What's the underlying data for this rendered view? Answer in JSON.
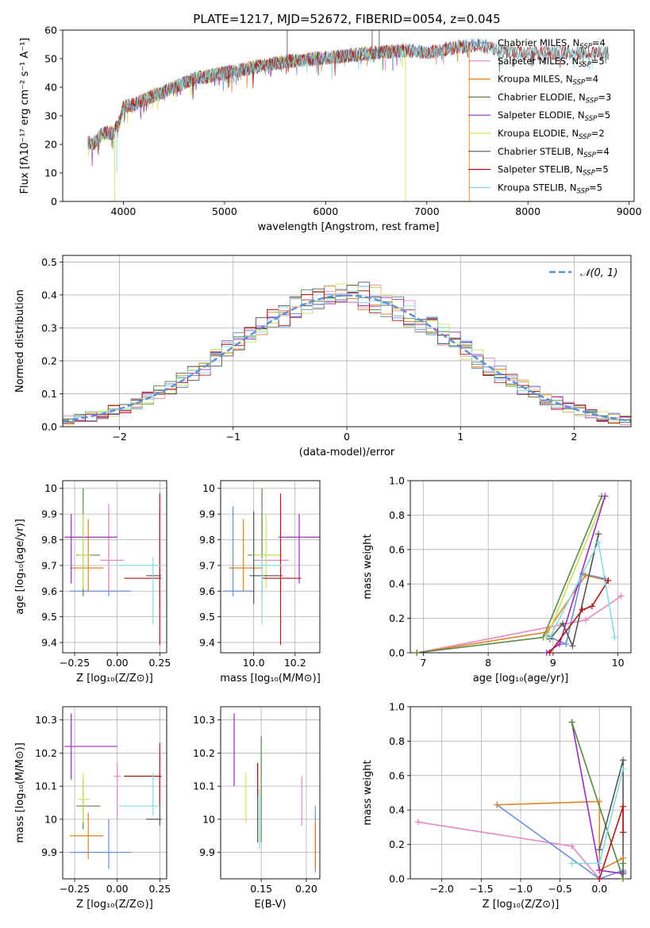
{
  "title": "PLATE=1217, MJD=52672, FIBERID=0054, z=0.045",
  "colors": {
    "Chabrier MILES": "#6a8fd8",
    "Salpeter MILES": "#e889c2",
    "Kroupa MILES": "#e08428",
    "Chabrier ELODIE": "#5a8a4a",
    "Salpeter ELODIE": "#9c2bc0",
    "Kroupa ELODIE": "#cfe35a",
    "Chabrier STELIB": "#555555",
    "Salpeter STELIB": "#b01818",
    "Kroupa STELIB": "#86dbe0",
    "gaussian": "#5b8ed6"
  },
  "chart_data": [
    {
      "id": "spectrum",
      "type": "line",
      "xlabel": "wavelength [Angstrom, rest frame]",
      "ylabel": "Flux [fλ10⁻¹⁷ erg cm⁻² s⁻¹ A⁻¹]",
      "xlim": [
        3400,
        9050
      ],
      "ylim": [
        0,
        60
      ],
      "xticks": [
        4000,
        5000,
        6000,
        7000,
        8000,
        9000
      ],
      "yticks": [
        0,
        10,
        20,
        30,
        40,
        50,
        60
      ],
      "legend_loc": "right",
      "legend": [
        {
          "label": "Chabrier MILES, N",
          "sub": "SSP",
          "suffix": "=4",
          "model": "Chabrier MILES"
        },
        {
          "label": "Salpeter MILES, N",
          "sub": "SSP",
          "suffix": "=5",
          "model": "Salpeter MILES"
        },
        {
          "label": "Kroupa MILES, N",
          "sub": "SSP",
          "suffix": "=4",
          "model": "Kroupa MILES"
        },
        {
          "label": "Chabrier ELODIE, N",
          "sub": "SSP",
          "suffix": "=3",
          "model": "Chabrier ELODIE"
        },
        {
          "label": "Salpeter ELODIE, N",
          "sub": "SSP",
          "suffix": "=5",
          "model": "Salpeter ELODIE"
        },
        {
          "label": "Kroupa ELODIE, N",
          "sub": "SSP",
          "suffix": "=2",
          "model": "Kroupa ELODIE"
        },
        {
          "label": "Chabrier STELIB, N",
          "sub": "SSP",
          "suffix": "=4",
          "model": "Chabrier STELIB"
        },
        {
          "label": "Salpeter STELIB, N",
          "sub": "SSP",
          "suffix": "=5",
          "model": "Salpeter STELIB"
        },
        {
          "label": "Kroupa STELIB, N",
          "sub": "SSP",
          "suffix": "=5",
          "model": "Kroupa STELIB"
        }
      ],
      "continuum": [
        [
          3650,
          21
        ],
        [
          3700,
          20
        ],
        [
          3800,
          24
        ],
        [
          3900,
          24
        ],
        [
          3950,
          27
        ],
        [
          4000,
          33
        ],
        [
          4100,
          34
        ],
        [
          4300,
          37
        ],
        [
          4500,
          40
        ],
        [
          4700,
          43
        ],
        [
          5000,
          45
        ],
        [
          5300,
          47
        ],
        [
          5600,
          49
        ],
        [
          5900,
          50
        ],
        [
          6200,
          51
        ],
        [
          6500,
          52
        ],
        [
          6800,
          53
        ],
        [
          7000,
          52
        ],
        [
          7300,
          54
        ],
        [
          7500,
          55
        ],
        [
          7700,
          53
        ],
        [
          8000,
          52
        ],
        [
          8300,
          52
        ],
        [
          8600,
          52
        ],
        [
          8800,
          52
        ]
      ],
      "model_ranges": {
        "Chabrier MILES": [
          3650,
          7400
        ],
        "Salpeter MILES": [
          3650,
          7400
        ],
        "Kroupa MILES": [
          3650,
          7400
        ],
        "Chabrier ELODIE": [
          3650,
          6800
        ],
        "Salpeter ELODIE": [
          3650,
          6800
        ],
        "Kroupa ELODIE": [
          3650,
          6800
        ],
        "Chabrier STELIB": [
          3650,
          8800
        ],
        "Salpeter STELIB": [
          3650,
          8800
        ],
        "Kroupa STELIB": [
          3650,
          8800
        ]
      }
    },
    {
      "id": "residuals",
      "type": "step",
      "xlabel": "(data-model)/error",
      "ylabel": "Normed distribution",
      "xlim": [
        -2.5,
        2.5
      ],
      "ylim": [
        0,
        0.52
      ],
      "xticks": [
        -2,
        -1,
        0,
        1,
        2
      ],
      "yticks": [
        0,
        0.1,
        0.2,
        0.3,
        0.4,
        0.5
      ],
      "grid": true,
      "legend_loc": "top-right",
      "gaussian_label": "𝒩(0, 1)",
      "bin_width": 0.1
    },
    {
      "id": "age_Z",
      "type": "errorbar",
      "xlabel": "Z [log₁₀(Z/Z⊙)]",
      "ylabel": "age  [log₁₀(age/yr)]",
      "xlim": [
        -0.32,
        0.29
      ],
      "ylim": [
        9.36,
        10.03
      ],
      "xticks": [
        -0.25,
        0,
        0.25
      ],
      "xticklabels": [
        "−0.25",
        "0.00",
        "0.25"
      ],
      "yticks": [
        9.4,
        9.5,
        9.6,
        9.7,
        9.8,
        9.9,
        10.0
      ],
      "grid": true,
      "points": [
        {
          "model": "Chabrier MILES",
          "x": -0.05,
          "xerr": [
            0.23,
            0.13
          ],
          "y": 9.6,
          "yerr": [
            0.02,
            0.33
          ]
        },
        {
          "model": "Salpeter MILES",
          "x": -0.05,
          "xerr": [
            0.05,
            0.09
          ],
          "y": 9.72,
          "yerr": [
            0.12,
            0.22
          ]
        },
        {
          "model": "Kroupa MILES",
          "x": -0.17,
          "xerr": [
            0.11,
            0.09
          ],
          "y": 9.69,
          "yerr": [
            0.09,
            0.19
          ]
        },
        {
          "model": "Chabrier ELODIE",
          "x": -0.2,
          "xerr": [
            0.04,
            0.1
          ],
          "y": 9.74,
          "yerr": [
            0.16,
            0.26
          ]
        },
        {
          "model": "Salpeter ELODIE",
          "x": -0.27,
          "xerr": [
            0.04,
            0.27
          ],
          "y": 9.81,
          "yerr": [
            0.18,
            0.09
          ]
        },
        {
          "model": "Kroupa ELODIE",
          "x": -0.2,
          "xerr": [
            0.03,
            0.04
          ],
          "y": 9.74,
          "yerr": [
            0.13,
            0.16
          ]
        },
        {
          "model": "Chabrier STELIB",
          "x": 0.25,
          "xerr": [
            0.08,
            0.01
          ],
          "y": 9.66,
          "yerr": [
            0.11,
            0.25
          ]
        },
        {
          "model": "Salpeter STELIB",
          "x": 0.25,
          "xerr": [
            0.21,
            0.01
          ],
          "y": 9.65,
          "yerr": [
            0.26,
            0.33
          ]
        },
        {
          "model": "Kroupa STELIB",
          "x": 0.21,
          "xerr": [
            0.2,
            0.05
          ],
          "y": 9.7,
          "yerr": [
            0.23,
            0.03
          ]
        }
      ]
    },
    {
      "id": "age_mass",
      "type": "errorbar",
      "xlabel": "mass [log₁₀(M/M⊙)]",
      "ylabel": "",
      "xlim": [
        9.84,
        10.32
      ],
      "ylim": [
        9.36,
        10.03
      ],
      "xticks": [
        10.0,
        10.2
      ],
      "xticklabels": [
        "10.0",
        "10.2"
      ],
      "yticks": [
        9.4,
        9.5,
        9.6,
        9.7,
        9.8,
        9.9,
        10.0
      ],
      "grid": true,
      "points": [
        {
          "model": "Chabrier MILES",
          "x": 9.9,
          "xerr": [
            0.05,
            0.1
          ],
          "y": 9.6,
          "yerr": [
            0.02,
            0.33
          ]
        },
        {
          "model": "Salpeter MILES",
          "x": 10.13,
          "xerr": [
            0.13,
            0.04
          ],
          "y": 9.72,
          "yerr": [
            0.12,
            0.22
          ]
        },
        {
          "model": "Kroupa MILES",
          "x": 9.95,
          "xerr": [
            0.07,
            0.09
          ],
          "y": 9.69,
          "yerr": [
            0.09,
            0.19
          ]
        },
        {
          "model": "Chabrier ELODIE",
          "x": 10.04,
          "xerr": [
            0.07,
            0.08
          ],
          "y": 9.74,
          "yerr": [
            0.16,
            0.26
          ]
        },
        {
          "model": "Salpeter ELODIE",
          "x": 10.22,
          "xerr": [
            0.1,
            0.1
          ],
          "y": 9.81,
          "yerr": [
            0.18,
            0.09
          ]
        },
        {
          "model": "Kroupa ELODIE",
          "x": 10.06,
          "xerr": [
            0.07,
            0.08
          ],
          "y": 9.74,
          "yerr": [
            0.13,
            0.16
          ]
        },
        {
          "model": "Chabrier STELIB",
          "x": 10.0,
          "xerr": [
            0.02,
            0.14
          ],
          "y": 9.66,
          "yerr": [
            0.11,
            0.25
          ]
        },
        {
          "model": "Salpeter STELIB",
          "x": 10.13,
          "xerr": [
            0.09,
            0.1
          ],
          "y": 9.65,
          "yerr": [
            0.26,
            0.33
          ]
        },
        {
          "model": "Kroupa STELIB",
          "x": 10.04,
          "xerr": [
            0.03,
            0.1
          ],
          "y": 9.7,
          "yerr": [
            0.23,
            0.03
          ]
        }
      ]
    },
    {
      "id": "weight_age",
      "type": "line",
      "xlabel": "age  [log₁₀(age/yr)]",
      "ylabel": "mass weight",
      "xlim": [
        6.8,
        10.2
      ],
      "ylim": [
        0,
        1.0
      ],
      "xticks": [
        7,
        8,
        9,
        10
      ],
      "yticks": [
        0,
        0.2,
        0.4,
        0.6,
        0.8,
        1.0
      ],
      "grid": true,
      "series": [
        {
          "model": "Salpeter MILES",
          "x": [
            6.9,
            9.5,
            10.05
          ],
          "y": [
            0.0,
            0.19,
            0.33
          ]
        },
        {
          "model": "Kroupa MILES",
          "x": [
            6.9,
            8.9,
            9.5,
            9.85
          ],
          "y": [
            0.0,
            0.12,
            0.45,
            0.42
          ]
        },
        {
          "model": "Chabrier MILES",
          "x": [
            8.9,
            9.2,
            9.45,
            9.8
          ],
          "y": [
            0.1,
            0.05,
            0.46,
            0.43
          ]
        },
        {
          "model": "Chabrier ELODIE",
          "x": [
            6.9,
            8.85,
            9.75
          ],
          "y": [
            0.0,
            0.09,
            0.91
          ]
        },
        {
          "model": "Kroupa ELODIE",
          "x": [
            8.9,
            9.8
          ],
          "y": [
            0.09,
            0.91
          ]
        },
        {
          "model": "Salpeter ELODIE",
          "x": [
            8.9,
            9.1,
            9.8
          ],
          "y": [
            0.0,
            0.05,
            0.91
          ]
        },
        {
          "model": "Chabrier STELIB",
          "x": [
            8.95,
            9.15,
            9.3,
            9.7
          ],
          "y": [
            0.08,
            0.17,
            0.04,
            0.69
          ]
        },
        {
          "model": "Salpeter STELIB",
          "x": [
            8.95,
            9.45,
            9.6,
            9.85
          ],
          "y": [
            0.0,
            0.25,
            0.27,
            0.42
          ]
        },
        {
          "model": "Kroupa STELIB",
          "x": [
            8.95,
            9.7,
            9.95
          ],
          "y": [
            0.09,
            0.64,
            0.09
          ]
        }
      ]
    },
    {
      "id": "mass_Z",
      "type": "errorbar",
      "xlabel": "Z [log₁₀(Z/Z⊙)]",
      "ylabel": "mass [log₁₀(M/M⊙)]",
      "xlim": [
        -0.32,
        0.29
      ],
      "ylim": [
        9.82,
        10.34
      ],
      "xticks": [
        -0.25,
        0,
        0.25
      ],
      "xticklabels": [
        "−0.25",
        "0.00",
        "0.25"
      ],
      "yticks": [
        9.9,
        10.0,
        10.1,
        10.2,
        10.3
      ],
      "grid": true,
      "points": [
        {
          "model": "Chabrier MILES",
          "x": -0.05,
          "xerr": [
            0.23,
            0.13
          ],
          "y": 9.9,
          "yerr": [
            0.05,
            0.1
          ]
        },
        {
          "model": "Salpeter MILES",
          "x": 0.0,
          "xerr": [
            0.02,
            0.02
          ],
          "y": 10.13,
          "yerr": [
            0.13,
            0.04
          ]
        },
        {
          "model": "Kroupa MILES",
          "x": -0.17,
          "xerr": [
            0.11,
            0.09
          ],
          "y": 9.95,
          "yerr": [
            0.07,
            0.07
          ]
        },
        {
          "model": "Chabrier ELODIE",
          "x": -0.2,
          "xerr": [
            0.04,
            0.1
          ],
          "y": 10.04,
          "yerr": [
            0.07,
            0.08
          ]
        },
        {
          "model": "Salpeter ELODIE",
          "x": -0.27,
          "xerr": [
            0.04,
            0.27
          ],
          "y": 10.22,
          "yerr": [
            0.1,
            0.1
          ]
        },
        {
          "model": "Kroupa ELODIE",
          "x": -0.2,
          "xerr": [
            0.03,
            0.04
          ],
          "y": 10.06,
          "yerr": [
            0.07,
            0.08
          ]
        },
        {
          "model": "Chabrier STELIB",
          "x": 0.25,
          "xerr": [
            0.08,
            0.01
          ],
          "y": 10.0,
          "yerr": [
            0.02,
            0.14
          ]
        },
        {
          "model": "Salpeter STELIB",
          "x": 0.25,
          "xerr": [
            0.21,
            0.01
          ],
          "y": 10.13,
          "yerr": [
            0.09,
            0.1
          ]
        },
        {
          "model": "Kroupa STELIB",
          "x": 0.21,
          "xerr": [
            0.2,
            0.05
          ],
          "y": 10.04,
          "yerr": [
            0.03,
            0.1
          ]
        }
      ]
    },
    {
      "id": "mass_ebv",
      "type": "errorbar",
      "xlabel": "E(B-V)",
      "ylabel": "",
      "xlim": [
        0.105,
        0.215
      ],
      "ylim": [
        9.82,
        10.34
      ],
      "xticks": [
        0.15,
        0.2
      ],
      "xticklabels": [
        "0.15",
        "0.20"
      ],
      "yticks": [
        9.9,
        10.0,
        10.1,
        10.2,
        10.3
      ],
      "grid": true,
      "points": [
        {
          "model": "Salpeter ELODIE",
          "x": 0.12,
          "y": 10.22,
          "yerr": [
            0.12,
            0.1
          ]
        },
        {
          "model": "Kroupa ELODIE",
          "x": 0.133,
          "y": 10.06,
          "yerr": [
            0.07,
            0.08
          ]
        },
        {
          "model": "Chabrier STELIB",
          "x": 0.146,
          "y": 10.03,
          "yerr": [
            0.1,
            0.14
          ]
        },
        {
          "model": "Salpeter STELIB",
          "x": 0.146,
          "y": 10.13,
          "yerr": [
            0.06,
            0.04
          ]
        },
        {
          "model": "Kroupa STELIB",
          "x": 0.148,
          "y": 10.03,
          "yerr": [
            0.12,
            0.06
          ]
        },
        {
          "model": "Chabrier ELODIE",
          "x": 0.15,
          "y": 10.1,
          "yerr": [
            0.17,
            0.15
          ]
        },
        {
          "model": "Salpeter MILES",
          "x": 0.195,
          "y": 10.06,
          "yerr": [
            0.08,
            0.07
          ]
        },
        {
          "model": "Chabrier MILES",
          "x": 0.21,
          "y": 9.95,
          "yerr": [
            0.11,
            0.09
          ]
        },
        {
          "model": "Kroupa MILES",
          "x": 0.21,
          "y": 9.92,
          "yerr": [
            0.07,
            0.08
          ]
        }
      ]
    },
    {
      "id": "weight_Z",
      "type": "line",
      "xlabel": "Z [log₁₀(Z/Z⊙)]",
      "ylabel": "mass weight",
      "xlim": [
        -2.4,
        0.4
      ],
      "ylim": [
        0,
        1.0
      ],
      "xticks": [
        -2.0,
        -1.5,
        -1.0,
        -0.5,
        0.0
      ],
      "xticklabels": [
        "−2.0",
        "−1.5",
        "−1.0",
        "−0.5",
        "0.0"
      ],
      "yticks": [
        0,
        0.2,
        0.4,
        0.6,
        0.8,
        1.0
      ],
      "grid": true,
      "series": [
        {
          "model": "Salpeter MILES",
          "x": [
            -2.3,
            -0.35,
            0.0,
            0.3
          ],
          "y": [
            0.33,
            0.19,
            0.0,
            0.0
          ]
        },
        {
          "model": "Chabrier MILES",
          "x": [
            -1.3,
            0.0,
            0.3
          ],
          "y": [
            0.43,
            0.0,
            0.05
          ]
        },
        {
          "model": "Kroupa MILES",
          "x": [
            -1.3,
            0.0,
            0.0,
            0.3
          ],
          "y": [
            0.43,
            0.45,
            0.05,
            0.12
          ]
        },
        {
          "model": "Kroupa ELODIE",
          "x": [
            -0.35,
            0.3
          ],
          "y": [
            0.91,
            0.0
          ]
        },
        {
          "model": "Salpeter ELODIE",
          "x": [
            -0.35,
            0.0,
            0.3
          ],
          "y": [
            0.91,
            0.05,
            0.03
          ]
        },
        {
          "model": "Chabrier ELODIE",
          "x": [
            -0.35,
            0.3,
            0.3
          ],
          "y": [
            0.91,
            0.0,
            0.09
          ]
        },
        {
          "model": "Chabrier STELIB",
          "x": [
            0.0,
            0.3,
            0.3
          ],
          "y": [
            0.17,
            0.69,
            0.04
          ]
        },
        {
          "model": "Salpeter STELIB",
          "x": [
            0.0,
            0.3,
            0.3
          ],
          "y": [
            0.0,
            0.42,
            0.27
          ]
        },
        {
          "model": "Kroupa STELIB",
          "x": [
            -0.35,
            0.0,
            0.3
          ],
          "y": [
            0.09,
            0.09,
            0.64
          ]
        }
      ]
    }
  ]
}
